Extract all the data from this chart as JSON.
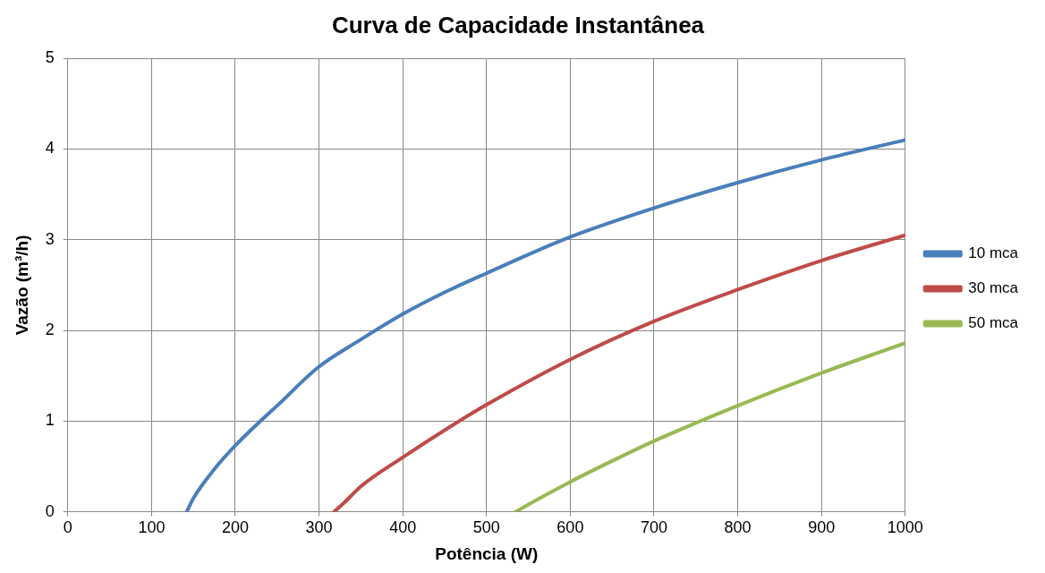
{
  "chart_data": {
    "type": "line",
    "title": "Curva de Capacidade Instantânea",
    "xlabel": "Potência (W)",
    "ylabel": "Vazão (m³/h)",
    "xlim": [
      0,
      1000
    ],
    "xticks": [
      0,
      100,
      200,
      300,
      400,
      500,
      600,
      700,
      800,
      900,
      1000
    ],
    "ylim": [
      0,
      5
    ],
    "yticks": [
      0,
      1,
      2,
      3,
      4,
      5
    ],
    "grid": true,
    "legend": "right",
    "marker": "none",
    "line_style": "solid",
    "series": [
      {
        "name": "10 mca",
        "color": "#4a7ebb",
        "x": [
          142,
          150,
          175,
          200,
          230,
          250,
          300,
          350,
          400,
          450,
          500,
          600,
          700,
          800,
          900,
          1000
        ],
        "values": [
          0,
          0.15,
          0.47,
          0.73,
          1.0,
          1.17,
          1.6,
          1.9,
          2.18,
          2.42,
          2.63,
          3.03,
          3.35,
          3.63,
          3.88,
          4.1
        ]
      },
      {
        "name": "30 mca",
        "color": "#be4b48",
        "x": [
          318,
          330,
          350,
          400,
          450,
          500,
          600,
          700,
          800,
          900,
          1000
        ],
        "values": [
          0,
          0.1,
          0.28,
          0.6,
          0.9,
          1.18,
          1.68,
          2.1,
          2.45,
          2.77,
          3.05
        ]
      },
      {
        "name": "50 mca",
        "color": "#98b954",
        "x": [
          535,
          550,
          600,
          650,
          700,
          800,
          900,
          1000
        ],
        "values": [
          0,
          0.08,
          0.33,
          0.56,
          0.78,
          1.17,
          1.53,
          1.86
        ]
      }
    ]
  }
}
